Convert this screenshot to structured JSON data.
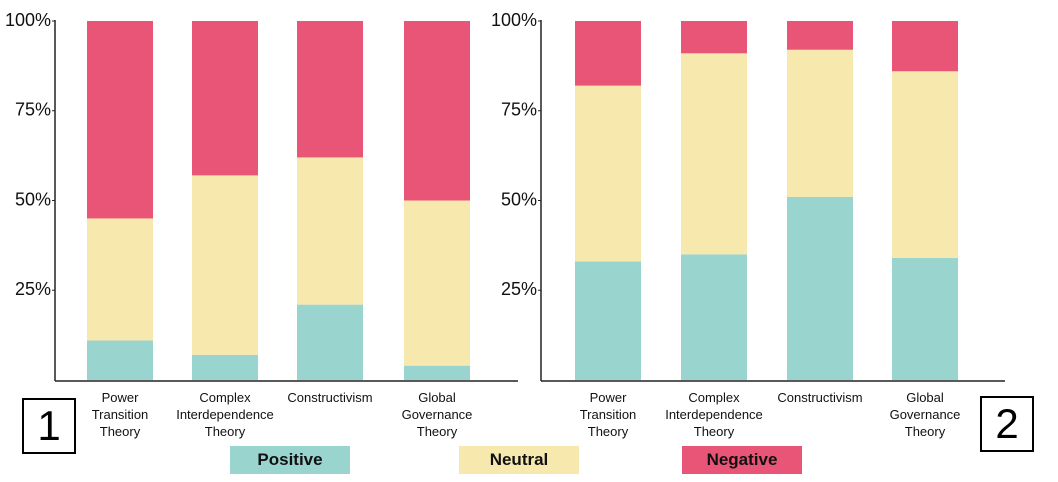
{
  "chart_data": [
    {
      "type": "stacked_bar",
      "panel_label": "1",
      "categories": [
        "Power\nTransition\nTheory",
        "Complex\nInterdependence\nTheory",
        "Constructivism",
        "Global\nGovernance\nTheory"
      ],
      "series": [
        {
          "name": "Positive",
          "color": "#99d4cf",
          "values": [
            11,
            7,
            21,
            4
          ]
        },
        {
          "name": "Neutral",
          "color": "#f7e8ae",
          "values": [
            34,
            50,
            41,
            46
          ]
        },
        {
          "name": "Negative",
          "color": "#e85577",
          "values": [
            55,
            43,
            38,
            50
          ]
        }
      ],
      "ylim": [
        0,
        100
      ],
      "yticks": [
        {
          "value": 25,
          "label": "25%"
        },
        {
          "value": 50,
          "label": "50%"
        },
        {
          "value": 75,
          "label": "75%"
        },
        {
          "value": 100,
          "label": "100%"
        }
      ]
    },
    {
      "type": "stacked_bar",
      "panel_label": "2",
      "categories": [
        "Power\nTransition\nTheory",
        "Complex\nInterdependence\nTheory",
        "Constructivism",
        "Global\nGovernance\nTheory"
      ],
      "series": [
        {
          "color": "#99d4cf",
          "values": [
            33,
            35,
            51,
            34
          ]
        },
        {
          "color": "#f7e8ae",
          "values": [
            49,
            56,
            41,
            52
          ]
        },
        {
          "color": "#e85577",
          "values": [
            18,
            9,
            8,
            14
          ]
        }
      ],
      "ylim": [
        0,
        100
      ],
      "yticks": [
        {
          "value": 25,
          "label": "25%"
        },
        {
          "value": 50,
          "label": "50%"
        },
        {
          "value": 75,
          "label": "75%"
        },
        {
          "value": 100,
          "label": "100%"
        }
      ]
    }
  ]
}
